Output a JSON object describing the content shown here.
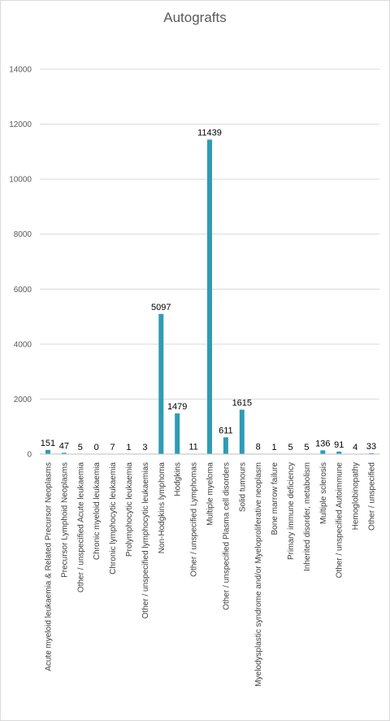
{
  "chart_data": {
    "type": "bar",
    "title": "Autografts",
    "xlabel": "",
    "ylabel": "",
    "ylim": [
      0,
      14000
    ],
    "yticks": [
      "0",
      "2000",
      "4000",
      "6000",
      "8000",
      "10000",
      "12000",
      "14000"
    ],
    "grid": true,
    "legend": "none",
    "bar_color": "#2e9cb4",
    "categories": [
      "Acute myeloid leukaemia & Related Precursor Neoplasms",
      "Precursor Lymphoid Neoplasms",
      "Other / unspecified  Acute leukaemia",
      "Chronic myeloid leukaemia",
      "Chronic lymphocytic leukaemia",
      "Prolymphocytic leukaemia",
      "Other / unspecified  lymphocytic leukaemias",
      "Non-Hodgkins lymphoma",
      "Hodgkins",
      "Other / unspecified  Lymphomas",
      "Multiple myeloma",
      "Other / unspecified  Plasma cell disorders",
      "Solid tumours",
      "Myelodysplastic syndrome and/or Myeloproliferative neoplasm",
      "Bone marrow failure",
      "Primary immune deficiency",
      "Inherited disorder, metabolism",
      "Multiple sclerosis",
      "Other / unspecified Autoimmune",
      "Hemoglobinopathy",
      "Other / unspecified"
    ],
    "values": [
      151,
      47,
      5,
      0,
      7,
      1,
      3,
      5097,
      1479,
      11,
      11439,
      611,
      1615,
      8,
      1,
      5,
      5,
      136,
      91,
      4,
      33
    ],
    "data_labels": [
      "151",
      "47",
      "5",
      "0",
      "7",
      "1",
      "3",
      "5097",
      "1479",
      "11",
      "11439",
      "611",
      "1615",
      "8",
      "1",
      "5",
      "5",
      "136",
      "91",
      "4",
      "33"
    ]
  }
}
